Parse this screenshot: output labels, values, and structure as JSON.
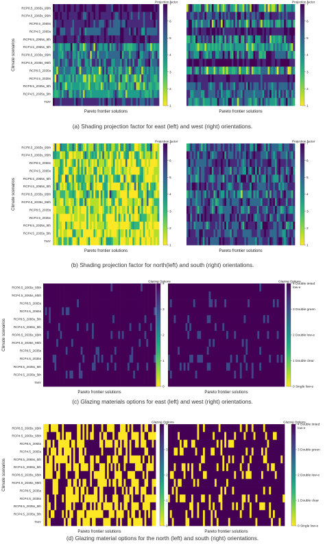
{
  "scenarios": [
    "RCP8.5_2065s_95th",
    "RCP4.5_2065s_95th",
    "RCP8.5_2065s",
    "RCP4.5_2065s",
    "RCP8.5_2065s_5th",
    "RCP4.5_2065s_5th",
    "RCP8.5_2035s_95th",
    "RCP4.5_2035s_95th",
    "RCP8.5_2035s",
    "RCP4.5_2035s",
    "RCP8.5_2035s_5th",
    "RCP4.5_2035s_5th",
    "TMY"
  ],
  "x_axis_label": "Pareto frontier solutions",
  "y_axis_label": "Climate scenarios",
  "colors": {
    "viridis": [
      "#440154",
      "#482878",
      "#3e4989",
      "#31688e",
      "#26828e",
      "#1f9e89",
      "#35b779",
      "#6ece58",
      "#b5de2b",
      "#fde725"
    ]
  },
  "chart_data": [
    {
      "type": "heatmap",
      "panel": "a",
      "caption": "(a) Shading projection factor for east (left) and west (right) orientations.",
      "colorbar_title": "Projection factor",
      "colorbar_ticks": [
        "1",
        "2",
        "3",
        "4",
        "5",
        "6",
        "7"
      ],
      "range": [
        1,
        7
      ],
      "columns": 60,
      "left_label": "",
      "right_label": "",
      "rows_left": [
        [
          6.5,
          0.6
        ],
        [
          6.2,
          0.7
        ],
        [
          5.8,
          0.8
        ],
        [
          5.5,
          0.9
        ],
        [
          6.4,
          0.6
        ],
        [
          4.6,
          1.4
        ],
        [
          5.0,
          1.2
        ],
        [
          5.2,
          1.1
        ],
        [
          4.2,
          1.3
        ],
        [
          3.8,
          1.5
        ],
        [
          3.6,
          1.1
        ],
        [
          4.0,
          1.0
        ],
        [
          5.8,
          0.7
        ]
      ],
      "rows_right": [
        [
          4.2,
          1.8
        ],
        [
          5.6,
          0.9
        ],
        [
          4.4,
          1.7
        ],
        [
          6.4,
          0.7
        ],
        [
          4.6,
          1.5
        ],
        [
          3.6,
          1.2
        ],
        [
          5.0,
          1.6
        ],
        [
          6.6,
          0.6
        ],
        [
          3.8,
          1.6
        ],
        [
          6.2,
          0.5
        ],
        [
          5.4,
          0.8
        ],
        [
          5.0,
          1.0
        ],
        [
          4.6,
          1.2
        ]
      ]
    },
    {
      "type": "heatmap",
      "panel": "b",
      "caption": "(b) Shading projection factor for north(left) and south (right) orientations.",
      "colorbar_title": "Projection factor",
      "colorbar_ticks": [
        "1",
        "2",
        "3",
        "4",
        "5",
        "6",
        "7"
      ],
      "range": [
        1,
        7
      ],
      "columns": 60,
      "left_label": "",
      "right_label": "",
      "rows_left": [
        [
          2.6,
          1.8
        ],
        [
          2.2,
          1.7
        ],
        [
          1.8,
          1.4
        ],
        [
          2.0,
          1.6
        ],
        [
          2.4,
          1.8
        ],
        [
          2.0,
          1.6
        ],
        [
          2.2,
          1.7
        ],
        [
          2.0,
          1.6
        ],
        [
          1.8,
          1.5
        ],
        [
          1.7,
          1.4
        ],
        [
          1.6,
          1.3
        ],
        [
          1.5,
          1.2
        ],
        [
          1.8,
          1.5
        ]
      ],
      "rows_right": [
        [
          5.4,
          1.2
        ],
        [
          5.6,
          1.1
        ],
        [
          5.8,
          1.0
        ],
        [
          5.5,
          1.1
        ],
        [
          5.4,
          1.2
        ],
        [
          5.6,
          1.0
        ],
        [
          5.2,
          1.3
        ],
        [
          5.5,
          1.1
        ],
        [
          5.3,
          1.2
        ],
        [
          5.6,
          1.0
        ],
        [
          5.4,
          1.2
        ],
        [
          5.7,
          0.9
        ],
        [
          5.6,
          1.0
        ]
      ]
    },
    {
      "type": "heatmap",
      "panel": "c",
      "caption": "(c) Glazing materials options for east (left) and west (right) orientations.",
      "colorbar_title": "Glazing Options",
      "colorbar_ticks": [
        "0",
        "1",
        "2",
        "3",
        "4"
      ],
      "colorbar_labels_right": [
        "0 Single low-e",
        "1 Double clear",
        "2 Double low-e",
        "3 Double green",
        "4 Double tinted low-e"
      ],
      "range": [
        0,
        4
      ],
      "columns": 60,
      "left_label": "",
      "right_label": "",
      "rows_left": [
        [
          3.9,
          0.25
        ],
        [
          3.9,
          0.2
        ],
        [
          3.9,
          0.25
        ],
        [
          3.85,
          0.3
        ],
        [
          3.85,
          0.3
        ],
        [
          3.85,
          0.35
        ],
        [
          3.8,
          0.35
        ],
        [
          3.85,
          0.3
        ],
        [
          3.8,
          0.35
        ],
        [
          3.8,
          0.4
        ],
        [
          3.8,
          0.4
        ],
        [
          3.85,
          0.3
        ],
        [
          3.9,
          0.2
        ]
      ],
      "rows_right": [
        [
          3.9,
          0.2
        ],
        [
          3.9,
          0.25
        ],
        [
          3.85,
          0.3
        ],
        [
          3.9,
          0.25
        ],
        [
          3.85,
          0.3
        ],
        [
          3.85,
          0.3
        ],
        [
          3.8,
          0.35
        ],
        [
          3.85,
          0.3
        ],
        [
          3.85,
          0.3
        ],
        [
          3.8,
          0.4
        ],
        [
          3.8,
          0.35
        ],
        [
          3.85,
          0.3
        ],
        [
          3.9,
          0.2
        ]
      ]
    },
    {
      "type": "heatmap",
      "panel": "d",
      "caption": "(d) Glazing material options for the north (left) and south (right) orientations.",
      "colorbar_title": "Glazing Options",
      "colorbar_ticks": [
        "0",
        "1",
        "2",
        "3",
        "4"
      ],
      "colorbar_labels_right": [
        "0 Single low-e",
        "1 Double clear",
        "2 Double low-e",
        "3 Double green",
        "4 Double tinted low-e"
      ],
      "range": [
        0,
        4
      ],
      "columns": 60,
      "binary_pair": [
        0,
        4
      ],
      "left_label": "",
      "right_label": "",
      "rows_left_p4": [
        0.55,
        0.5,
        0.45,
        0.5,
        0.5,
        0.45,
        0.5,
        0.5,
        0.45,
        0.45,
        0.5,
        0.45,
        0.5
      ],
      "rows_right_p4": [
        0.85,
        0.85,
        0.8,
        0.8,
        0.8,
        0.8,
        0.82,
        0.78,
        0.8,
        0.8,
        0.8,
        0.78,
        0.85
      ]
    }
  ]
}
